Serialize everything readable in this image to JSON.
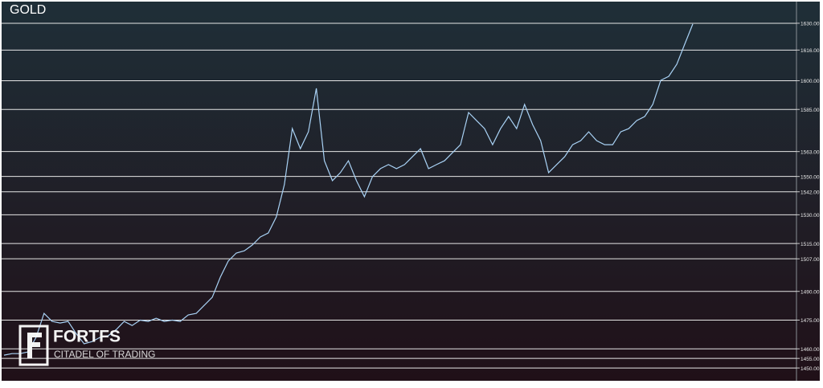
{
  "chart_data": {
    "type": "line",
    "title": "GOLD",
    "brand": "FORTFS",
    "tagline": "CITADEL OF TRADING",
    "series": [
      {
        "name": "GOLD",
        "color": "#a9d2f5",
        "values": [
          1456.7,
          1457.5,
          1457.5,
          1458.4,
          1466.0,
          1478.5,
          1474.3,
          1473.5,
          1474.3,
          1468.0,
          1462.6,
          1463.8,
          1466.0,
          1466.8,
          1470.0,
          1474.3,
          1472.2,
          1475.0,
          1474.3,
          1476.0,
          1474.3,
          1475.0,
          1474.3,
          1477.7,
          1478.5,
          1482.7,
          1486.9,
          1497.4,
          1505.8,
          1510.0,
          1511.2,
          1514.2,
          1518.4,
          1520.5,
          1528.9,
          1545.7,
          1575.0,
          1564.5,
          1573.3,
          1596.0,
          1558.2,
          1547.8,
          1552.0,
          1558.2,
          1547.8,
          1539.4,
          1549.9,
          1554.1,
          1556.2,
          1554.1,
          1556.2,
          1560.3,
          1564.5,
          1554.1,
          1556.2,
          1558.2,
          1562.4,
          1566.6,
          1583.4,
          1579.2,
          1575.0,
          1566.6,
          1575.0,
          1581.3,
          1575.0,
          1587.6,
          1577.1,
          1568.7,
          1552.0,
          1556.2,
          1560.3,
          1566.6,
          1568.7,
          1573.3,
          1568.7,
          1566.6,
          1566.6,
          1573.3,
          1575.0,
          1579.2,
          1581.3,
          1587.6,
          1600.2,
          1602.3,
          1608.6,
          1619.1,
          1629.6
        ]
      }
    ],
    "ylim": [
      1445,
      1641.3
    ],
    "yticks": [
      {
        "value": 1630,
        "label": "1630.00"
      },
      {
        "value": 1616,
        "label": "1616.00"
      },
      {
        "value": 1600,
        "label": "1600.00"
      },
      {
        "value": 1585,
        "label": "1585.00"
      },
      {
        "value": 1563,
        "label": "1563.00"
      },
      {
        "value": 1550,
        "label": "1550.00"
      },
      {
        "value": 1542,
        "label": "1542.00"
      },
      {
        "value": 1530,
        "label": "1530.00"
      },
      {
        "value": 1515,
        "label": "1515.00"
      },
      {
        "value": 1507,
        "label": "1507.00"
      },
      {
        "value": 1490,
        "label": "1490.00"
      },
      {
        "value": 1475,
        "label": "1475.00"
      },
      {
        "value": 1460,
        "label": "1460.00"
      },
      {
        "value": 1455,
        "label": "1455.00"
      },
      {
        "value": 1450,
        "label": "1450.00"
      }
    ],
    "grid": true
  }
}
